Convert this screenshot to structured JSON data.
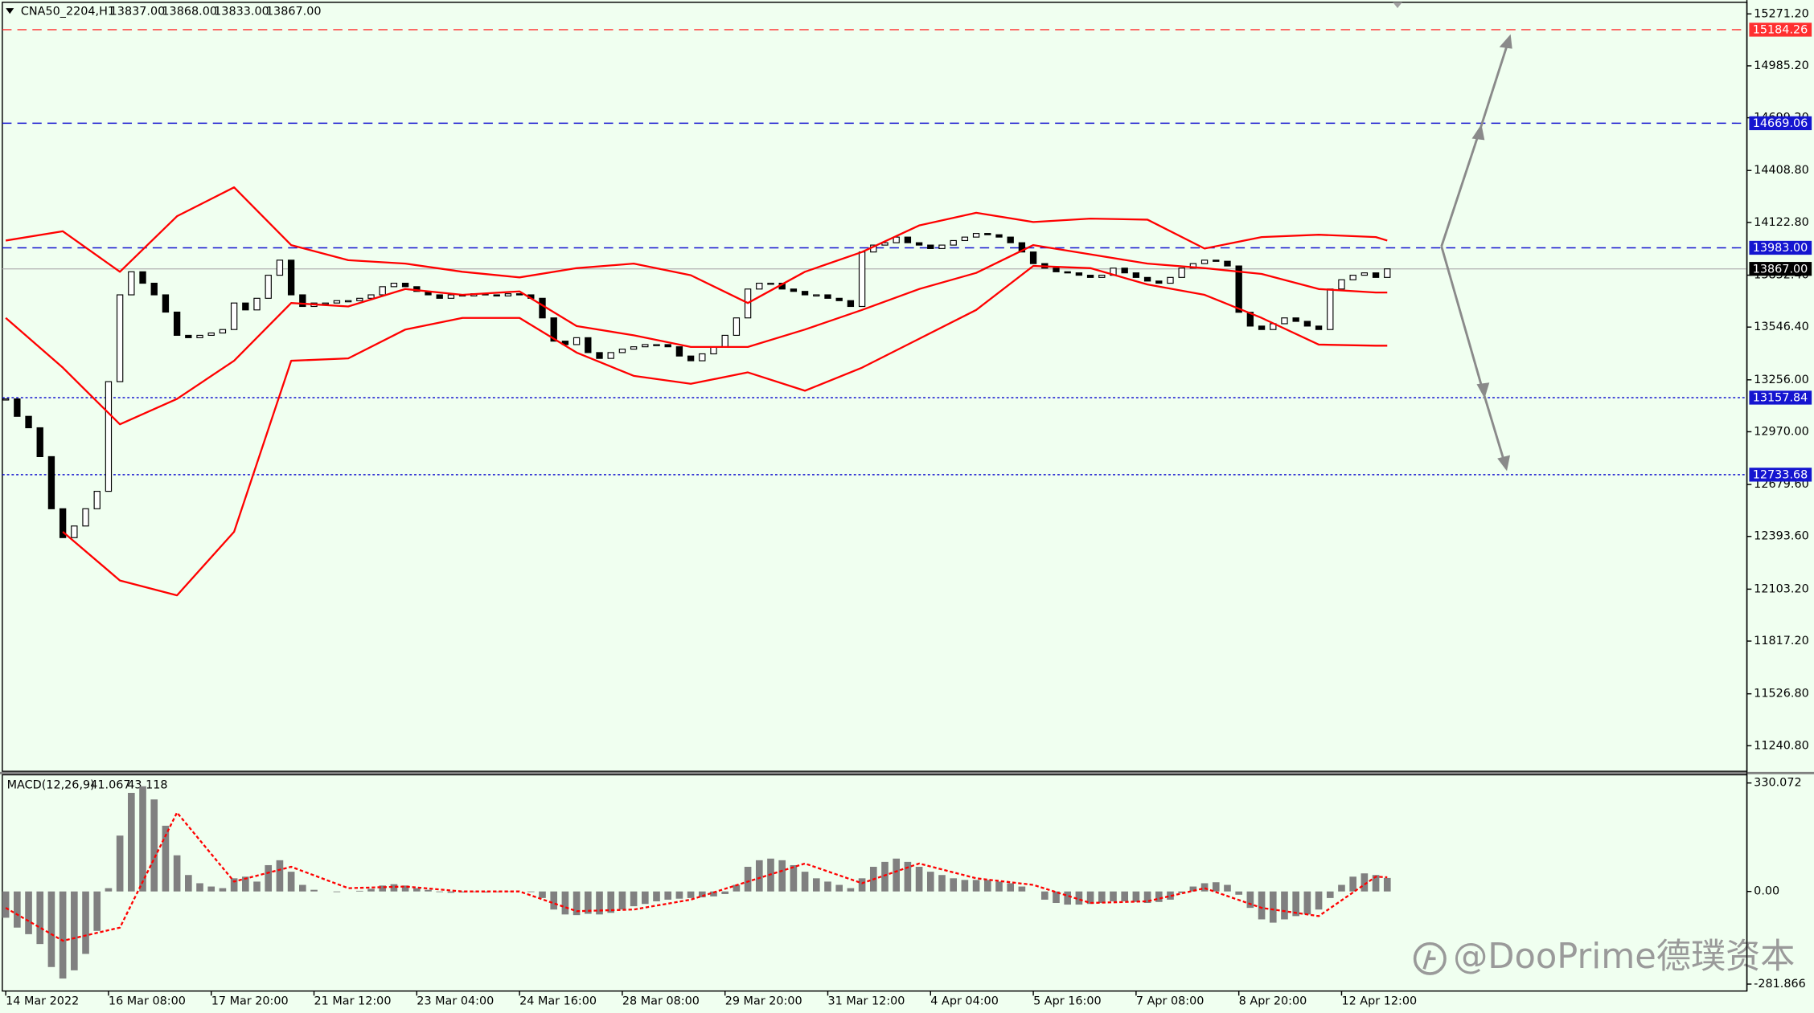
{
  "chart_data": [
    {
      "type": "candlestick",
      "symbol": "CNA50_2204,H1",
      "ohlc_text": [
        "13837.00",
        "13868.00",
        "13833.00",
        "13867.00"
      ],
      "xlim": [
        -0.3,
        152.5
      ],
      "ylim": [
        11100,
        15335
      ],
      "yticks": [
        {
          "value": 15271.2,
          "label": "15271.20"
        },
        {
          "value": 14985.2,
          "label": "14985.20"
        },
        {
          "value": 14699.2,
          "label": "14699.20"
        },
        {
          "value": 14408.8,
          "label": "14408.80"
        },
        {
          "value": 14122.8,
          "label": "14122.80"
        },
        {
          "value": 13832.4,
          "label": "13832.40"
        },
        {
          "value": 13546.4,
          "label": "13546.40"
        },
        {
          "value": 13256,
          "label": "13256.00"
        },
        {
          "value": 12970,
          "label": "12970.00"
        },
        {
          "value": 12679.6,
          "label": "12679.60"
        },
        {
          "value": 12393.6,
          "label": "12393.60"
        },
        {
          "value": 12103.2,
          "label": "12103.20"
        },
        {
          "value": 11817.2,
          "label": "11817.20"
        },
        {
          "value": 11526.8,
          "label": "11526.80"
        },
        {
          "value": 11240.8,
          "label": "11240.80"
        }
      ],
      "xticks": [
        {
          "value": 0,
          "label": "14 Mar 2022"
        },
        {
          "value": 9,
          "label": "16 Mar 08:00"
        },
        {
          "value": 18,
          "label": "17 Mar 20:00"
        },
        {
          "value": 27,
          "label": "21 Mar 12:00"
        },
        {
          "value": 36,
          "label": "23 Mar 04:00"
        },
        {
          "value": 45,
          "label": "24 Mar 16:00"
        },
        {
          "value": 54,
          "label": "28 Mar 08:00"
        },
        {
          "value": 63,
          "label": "29 Mar 20:00"
        },
        {
          "value": 72,
          "label": "31 Mar 12:00"
        },
        {
          "value": 81,
          "label": "4 Apr 04:00"
        },
        {
          "value": 90,
          "label": "5 Apr 16:00"
        },
        {
          "value": 99,
          "label": "7 Apr 08:00"
        },
        {
          "value": 108,
          "label": "8 Apr 20:00"
        },
        {
          "value": 117,
          "label": "12 Apr 12:00"
        }
      ],
      "close": [
        13151,
        13055,
        12992,
        12833,
        12546,
        12387,
        12451,
        12546,
        12642,
        13246,
        13724,
        13851,
        13788,
        13724,
        13629,
        13501,
        13488,
        13501,
        13514,
        13533,
        13679,
        13641,
        13705,
        13832,
        13915,
        13724,
        13660,
        13679,
        13679,
        13692,
        13692,
        13705,
        13724,
        13769,
        13788,
        13769,
        13743,
        13724,
        13705,
        13724,
        13718,
        13730,
        13724,
        13718,
        13730,
        13724,
        13705,
        13597,
        13469,
        13450,
        13488,
        13406,
        13374,
        13406,
        13425,
        13438,
        13450,
        13450,
        13438,
        13387,
        13361,
        13399,
        13438,
        13501,
        13597,
        13756,
        13788,
        13788,
        13756,
        13743,
        13724,
        13724,
        13705,
        13692,
        13660,
        13960,
        13998,
        14011,
        14042,
        14011,
        13998,
        13979,
        13998,
        14023,
        14042,
        14062,
        14055,
        14042,
        14011,
        13960,
        13896,
        13871,
        13851,
        13845,
        13832,
        13820,
        13832,
        13871,
        13845,
        13820,
        13800,
        13788,
        13820,
        13871,
        13896,
        13915,
        13909,
        13883,
        13628,
        13552,
        13533,
        13565,
        13597,
        13578,
        13552,
        13533,
        13756,
        13807,
        13832,
        13845,
        13820,
        13867
      ],
      "up_color": "#ffffff",
      "down_color": "#000000",
      "band_x": [
        0,
        5,
        10,
        15,
        20,
        25,
        30,
        35,
        40,
        45,
        50,
        55,
        60,
        65,
        70,
        75,
        80,
        85,
        90,
        95,
        100,
        105,
        110,
        115,
        120,
        121
      ],
      "bands": [
        {
          "color": "#ff0000",
          "values": [
            14023,
            14074,
            13851,
            14157,
            14316,
            13998,
            13915,
            13896,
            13851,
            13820,
            13871,
            13896,
            13832,
            13679,
            13851,
            13960,
            14106,
            14176,
            14125,
            14144,
            14138,
            13979,
            14042,
            14055,
            14042,
            14023
          ]
        },
        {
          "color": "#ff0000",
          "values": [
            13597,
            13323,
            13011,
            13151,
            13361,
            13679,
            13660,
            13756,
            13724,
            13743,
            13552,
            13501,
            13437,
            13437,
            13533,
            13641,
            13756,
            13845,
            13998,
            13947,
            13896,
            13871,
            13839,
            13756,
            13737,
            13737
          ]
        },
        {
          "color": "#ff0000",
          "values": [
            null,
            12419,
            12151,
            12069,
            12419,
            13361,
            13374,
            13533,
            13597,
            13597,
            13406,
            13278,
            13234,
            13297,
            13196,
            13323,
            13482,
            13641,
            13883,
            13871,
            13781,
            13724,
            13597,
            13450,
            13444,
            13444
          ]
        }
      ],
      "levels": [
        {
          "value": 15184.26,
          "color": "#ff3030",
          "style": "dashed"
        },
        {
          "value": 14669.06,
          "color": "#1515d0",
          "style": "dashed"
        },
        {
          "value": 13983,
          "label": "13983.00",
          "color": "#1515d0",
          "style": "dashed"
        },
        {
          "value": 13867,
          "label": "13867.00",
          "color": "#000000",
          "style": "solid"
        },
        {
          "value": 13157.84,
          "color": "#1515d0",
          "style": "dotted"
        },
        {
          "value": 12733.68,
          "color": "#1515d0",
          "style": "dotted"
        }
      ]
    },
    {
      "type": "bar",
      "label": "MACD(12,26,9)",
      "macd_value": 41.067,
      "signal_value": 43.118,
      "ylim": [
        -303,
        355
      ],
      "yticks": [
        330.072,
        {
          "value": 0,
          "label": "0.00"
        },
        -281.866
      ],
      "color": "#808080",
      "values": [
        -80,
        -110,
        -130,
        -160,
        -230,
        -265,
        -240,
        -190,
        -120,
        10,
        170,
        300,
        320,
        280,
        200,
        110,
        50,
        25,
        15,
        10,
        40,
        45,
        30,
        80,
        95,
        60,
        20,
        5,
        0,
        -2,
        0,
        2,
        8,
        18,
        22,
        18,
        10,
        5,
        -2,
        -4,
        -3,
        -2,
        -3,
        -2,
        -1,
        0,
        -2,
        -20,
        -55,
        -70,
        -72,
        -68,
        -70,
        -65,
        -55,
        -45,
        -38,
        -30,
        -25,
        -22,
        -20,
        -18,
        -15,
        -8,
        20,
        75,
        95,
        100,
        95,
        80,
        60,
        40,
        30,
        20,
        10,
        40,
        75,
        90,
        100,
        90,
        75,
        60,
        50,
        40,
        35,
        35,
        35,
        30,
        25,
        15,
        0,
        -25,
        -35,
        -40,
        -40,
        -38,
        -35,
        -30,
        -30,
        -32,
        -35,
        -32,
        -25,
        -5,
        15,
        25,
        28,
        20,
        -10,
        -50,
        -85,
        -95,
        -85,
        -75,
        -70,
        -55,
        -20,
        20,
        45,
        55,
        50,
        41.067
      ],
      "signal": {
        "color": "#ff0000",
        "x": [
          0,
          5,
          10,
          15,
          20,
          25,
          30,
          35,
          40,
          45,
          50,
          55,
          60,
          65,
          70,
          75,
          80,
          85,
          90,
          95,
          100,
          105,
          110,
          115,
          120,
          121
        ],
        "values": [
          -50,
          -150,
          -110,
          240,
          30,
          75,
          10,
          15,
          0,
          0,
          -60,
          -55,
          -25,
          30,
          85,
          25,
          85,
          40,
          20,
          -35,
          -30,
          10,
          -50,
          -75,
          45,
          43.118
        ]
      }
    }
  ],
  "watermark": "@DooPrime德璞资本"
}
